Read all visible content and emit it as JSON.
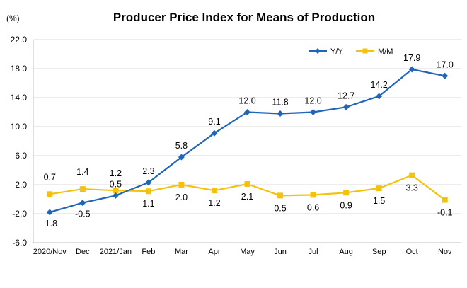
{
  "chart_data": {
    "type": "line",
    "title": "Producer Price Index for Means of Production",
    "ylabel": "(%)",
    "xlabel": "",
    "ylim": [
      -6.0,
      22.0
    ],
    "yticks": [
      "22.0",
      "18.0",
      "14.0",
      "10.0",
      "6.0",
      "2.0",
      "-2.0",
      "-6.0"
    ],
    "categories": [
      "2020/Nov",
      "Dec",
      "2021/Jan",
      "Feb",
      "Mar",
      "Apr",
      "May",
      "Jun",
      "Jul",
      "Aug",
      "Sep",
      "Oct",
      "Nov"
    ],
    "grid": true,
    "legend": "top-right",
    "series": [
      {
        "name": "Y/Y",
        "color": "#2065b8",
        "marker": "diamond",
        "values": [
          -1.8,
          -0.5,
          0.5,
          2.3,
          5.8,
          9.1,
          12.0,
          11.8,
          12.0,
          12.7,
          14.2,
          17.9,
          17.0
        ],
        "labels": [
          "-1.8",
          "-0.5",
          "0.5",
          "2.3",
          "5.8",
          "9.1",
          "12.0",
          "11.8",
          "12.0",
          "12.7",
          "14.2",
          "17.9",
          "17.0"
        ]
      },
      {
        "name": "M/M",
        "color": "#f4c20d",
        "marker": "square",
        "values": [
          0.7,
          1.4,
          1.2,
          1.1,
          2.0,
          1.2,
          2.1,
          0.5,
          0.6,
          0.9,
          1.5,
          3.3,
          -0.1
        ],
        "labels": [
          "0.7",
          "1.4",
          "1.2",
          "1.1",
          "2.0",
          "1.2",
          "2.1",
          "0.5",
          "0.6",
          "0.9",
          "1.5",
          "3.3",
          "-0.1"
        ]
      }
    ]
  }
}
